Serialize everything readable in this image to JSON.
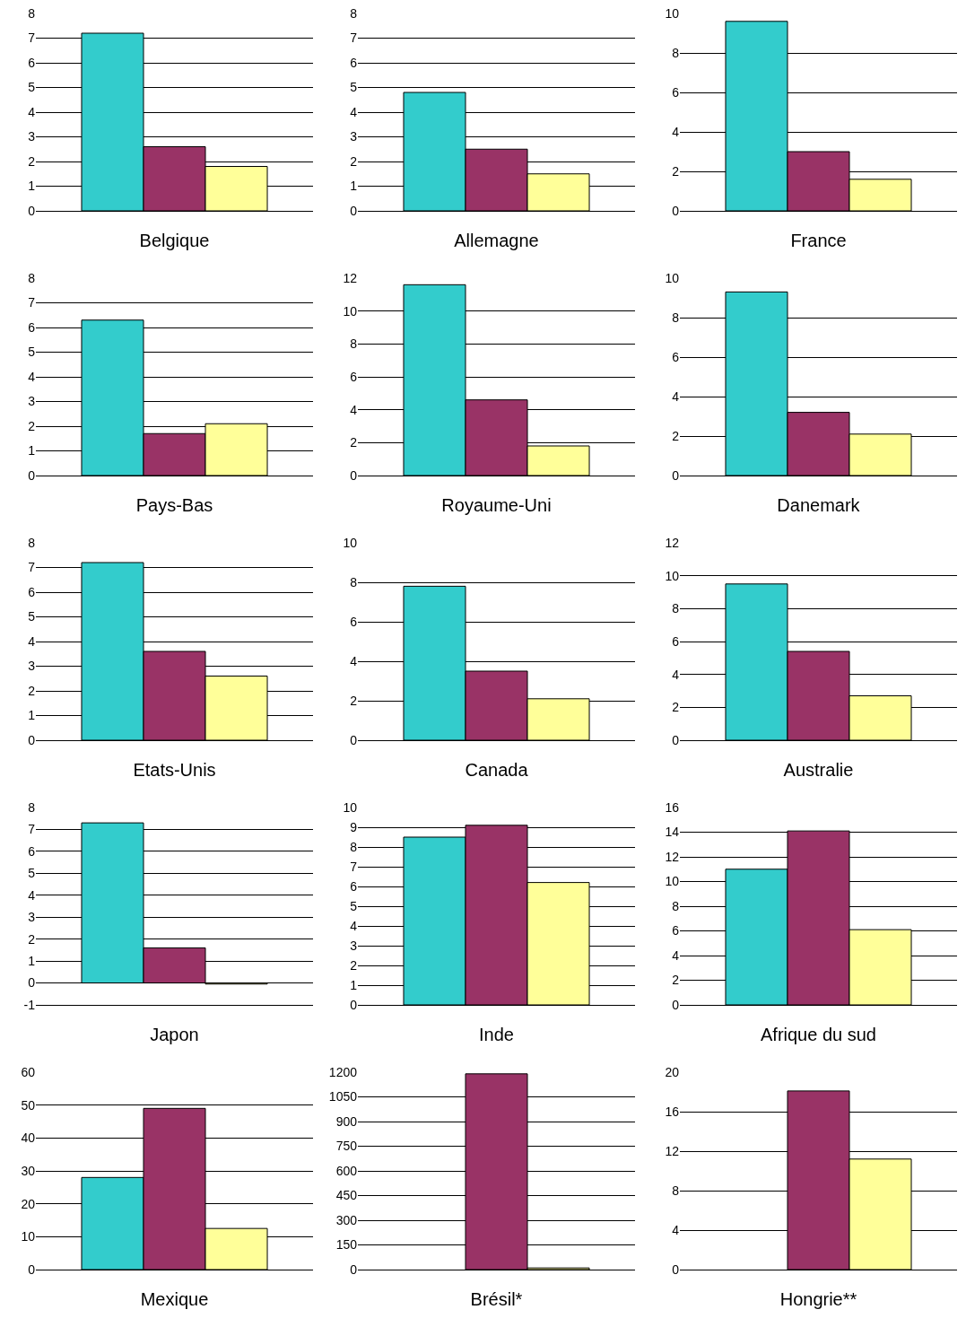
{
  "chart_data": [
    {
      "type": "bar",
      "xlabel": "Belgique",
      "categories": [
        null
      ],
      "series": [
        {
          "color": "#33cccc",
          "values": [
            7.2
          ]
        },
        {
          "color": "#993366",
          "values": [
            2.6
          ]
        },
        {
          "color": "#ffff99",
          "values": [
            1.8
          ]
        }
      ],
      "ylim": [
        0,
        8
      ],
      "yticks": [
        0,
        1,
        2,
        3,
        4,
        5,
        6,
        7,
        8
      ],
      "grid": "y"
    },
    {
      "type": "bar",
      "xlabel": "Allemagne",
      "categories": [
        null
      ],
      "series": [
        {
          "color": "#33cccc",
          "values": [
            4.8
          ]
        },
        {
          "color": "#993366",
          "values": [
            2.5
          ]
        },
        {
          "color": "#ffff99",
          "values": [
            1.5
          ]
        }
      ],
      "ylim": [
        0,
        8
      ],
      "yticks": [
        0,
        1,
        2,
        3,
        4,
        5,
        6,
        7,
        8
      ],
      "grid": "y"
    },
    {
      "type": "bar",
      "xlabel": "France",
      "categories": [
        null
      ],
      "series": [
        {
          "color": "#33cccc",
          "values": [
            9.6
          ]
        },
        {
          "color": "#993366",
          "values": [
            3.0
          ]
        },
        {
          "color": "#ffff99",
          "values": [
            1.6
          ]
        }
      ],
      "ylim": [
        0,
        10
      ],
      "yticks": [
        0,
        2,
        4,
        6,
        8,
        10
      ],
      "grid": "y"
    },
    {
      "type": "bar",
      "xlabel": "Pays-Bas",
      "categories": [
        null
      ],
      "series": [
        {
          "color": "#33cccc",
          "values": [
            6.3
          ]
        },
        {
          "color": "#993366",
          "values": [
            1.7
          ]
        },
        {
          "color": "#ffff99",
          "values": [
            2.1
          ]
        }
      ],
      "ylim": [
        0,
        8
      ],
      "yticks": [
        0,
        1,
        2,
        3,
        4,
        5,
        6,
        7,
        8
      ],
      "grid": "y"
    },
    {
      "type": "bar",
      "xlabel": "Royaume-Uni",
      "categories": [
        null
      ],
      "series": [
        {
          "color": "#33cccc",
          "values": [
            11.6
          ]
        },
        {
          "color": "#993366",
          "values": [
            4.6
          ]
        },
        {
          "color": "#ffff99",
          "values": [
            1.8
          ]
        }
      ],
      "ylim": [
        0,
        12
      ],
      "yticks": [
        0,
        2,
        4,
        6,
        8,
        10,
        12
      ],
      "grid": "y"
    },
    {
      "type": "bar",
      "xlabel": "Danemark",
      "categories": [
        null
      ],
      "series": [
        {
          "color": "#33cccc",
          "values": [
            9.3
          ]
        },
        {
          "color": "#993366",
          "values": [
            3.2
          ]
        },
        {
          "color": "#ffff99",
          "values": [
            2.1
          ]
        }
      ],
      "ylim": [
        0,
        10
      ],
      "yticks": [
        0,
        2,
        4,
        6,
        8,
        10
      ],
      "grid": "y"
    },
    {
      "type": "bar",
      "xlabel": "Etats-Unis",
      "categories": [
        null
      ],
      "series": [
        {
          "color": "#33cccc",
          "values": [
            7.2
          ]
        },
        {
          "color": "#993366",
          "values": [
            3.6
          ]
        },
        {
          "color": "#ffff99",
          "values": [
            2.6
          ]
        }
      ],
      "ylim": [
        0,
        8
      ],
      "yticks": [
        0,
        1,
        2,
        3,
        4,
        5,
        6,
        7,
        8
      ],
      "grid": "y"
    },
    {
      "type": "bar",
      "xlabel": "Canada",
      "categories": [
        null
      ],
      "series": [
        {
          "color": "#33cccc",
          "values": [
            7.8
          ]
        },
        {
          "color": "#993366",
          "values": [
            3.5
          ]
        },
        {
          "color": "#ffff99",
          "values": [
            2.1
          ]
        }
      ],
      "ylim": [
        0,
        10
      ],
      "yticks": [
        0,
        2,
        4,
        6,
        8,
        10
      ],
      "grid": "y"
    },
    {
      "type": "bar",
      "xlabel": "Australie",
      "categories": [
        null
      ],
      "series": [
        {
          "color": "#33cccc",
          "values": [
            9.5
          ]
        },
        {
          "color": "#993366",
          "values": [
            5.4
          ]
        },
        {
          "color": "#ffff99",
          "values": [
            2.7
          ]
        }
      ],
      "ylim": [
        0,
        12
      ],
      "yticks": [
        0,
        2,
        4,
        6,
        8,
        10,
        12
      ],
      "grid": "y"
    },
    {
      "type": "bar",
      "xlabel": "Japon",
      "categories": [
        null
      ],
      "series": [
        {
          "color": "#33cccc",
          "values": [
            7.3
          ]
        },
        {
          "color": "#993366",
          "values": [
            1.6
          ]
        },
        {
          "color": "#ffff99",
          "values": [
            -0.05
          ]
        }
      ],
      "ylim": [
        -1,
        8
      ],
      "yticks": [
        -1,
        0,
        1,
        2,
        3,
        4,
        5,
        6,
        7,
        8
      ],
      "grid": "y"
    },
    {
      "type": "bar",
      "xlabel": "Inde",
      "categories": [
        null
      ],
      "series": [
        {
          "color": "#33cccc",
          "values": [
            8.5
          ]
        },
        {
          "color": "#993366",
          "values": [
            9.1
          ]
        },
        {
          "color": "#ffff99",
          "values": [
            6.2
          ]
        }
      ],
      "ylim": [
        0,
        10
      ],
      "yticks": [
        0,
        1,
        2,
        3,
        4,
        5,
        6,
        7,
        8,
        9,
        10
      ],
      "grid": "y"
    },
    {
      "type": "bar",
      "xlabel": "Afrique du sud",
      "categories": [
        null
      ],
      "series": [
        {
          "color": "#33cccc",
          "values": [
            11.0
          ]
        },
        {
          "color": "#993366",
          "values": [
            14.1
          ]
        },
        {
          "color": "#ffff99",
          "values": [
            6.1
          ]
        }
      ],
      "ylim": [
        0,
        16
      ],
      "yticks": [
        0,
        2,
        4,
        6,
        8,
        10,
        12,
        14,
        16
      ],
      "grid": "y"
    },
    {
      "type": "bar",
      "xlabel": "Mexique",
      "categories": [
        null
      ],
      "series": [
        {
          "color": "#33cccc",
          "values": [
            28
          ]
        },
        {
          "color": "#993366",
          "values": [
            49
          ]
        },
        {
          "color": "#ffff99",
          "values": [
            12.5
          ]
        }
      ],
      "ylim": [
        0,
        60
      ],
      "yticks": [
        0,
        10,
        20,
        30,
        40,
        50,
        60
      ],
      "grid": "y"
    },
    {
      "type": "bar",
      "xlabel": "Brésil*",
      "categories": [
        null
      ],
      "series": [
        {
          "color": "#33cccc",
          "values": [
            null
          ]
        },
        {
          "color": "#993366",
          "values": [
            1190
          ]
        },
        {
          "color": "#ffff99",
          "values": [
            10
          ]
        }
      ],
      "ylim": [
        0,
        1200
      ],
      "yticks": [
        0,
        150,
        300,
        450,
        600,
        750,
        900,
        1050,
        1200
      ],
      "grid": "y"
    },
    {
      "type": "bar",
      "xlabel": "Hongrie**",
      "categories": [
        null
      ],
      "series": [
        {
          "color": "#33cccc",
          "values": [
            null
          ]
        },
        {
          "color": "#993366",
          "values": [
            18.1
          ]
        },
        {
          "color": "#ffff99",
          "values": [
            11.2
          ]
        }
      ],
      "ylim": [
        0,
        20
      ],
      "yticks": [
        0,
        4,
        8,
        12,
        16,
        20
      ],
      "grid": "y"
    }
  ]
}
